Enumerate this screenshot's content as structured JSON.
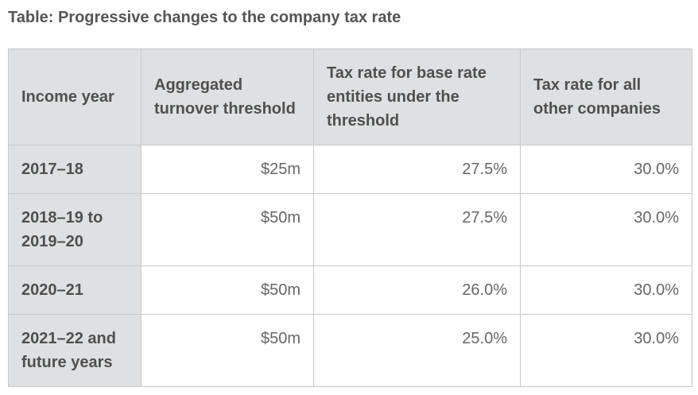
{
  "caption": "Table: Progressive changes to the company tax rate",
  "table": {
    "headers": [
      "Income year",
      "Aggregated turnover threshold",
      "Tax rate for base rate entities under the threshold",
      "Tax rate for all other companies"
    ],
    "rows": [
      {
        "year": "2017–18",
        "threshold": "$25m",
        "base_rate": "27.5%",
        "other_rate": "30.0%"
      },
      {
        "year": "2018–19 to 2019–20",
        "threshold": "$50m",
        "base_rate": "27.5%",
        "other_rate": "30.0%"
      },
      {
        "year": "2020–21",
        "threshold": "$50m",
        "base_rate": "26.0%",
        "other_rate": "30.0%"
      },
      {
        "year": "2021–22 and future years",
        "threshold": "$50m",
        "base_rate": "25.0%",
        "other_rate": "30.0%"
      }
    ]
  },
  "colors": {
    "header_background": "#dfe0e1",
    "border": "#c8c8c8",
    "text": "#555555"
  }
}
